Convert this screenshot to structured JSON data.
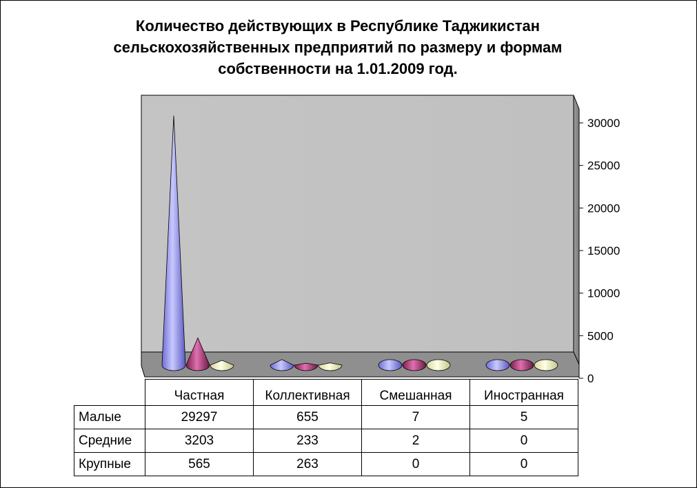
{
  "chart_data": {
    "type": "bar",
    "title_lines": [
      "Количество действующих в Республике Таджикистан",
      "сельскохозяйственных предприятий по размеру и формам",
      "собственности на 1.01.2009 год."
    ],
    "categories": [
      "Частная",
      "Коллективная",
      "Смешанная",
      "Иностранная"
    ],
    "series": [
      {
        "name": "Малые",
        "values": [
          29297,
          655,
          7,
          5
        ],
        "color": "#9999FF"
      },
      {
        "name": "Средние",
        "values": [
          3203,
          233,
          2,
          0
        ],
        "color": "#993366"
      },
      {
        "name": "Крупные",
        "values": [
          565,
          263,
          0,
          0
        ],
        "color": "#FFFFCC"
      }
    ],
    "ylim": [
      0,
      30000
    ],
    "yticks": [
      0,
      5000,
      10000,
      15000,
      20000,
      25000,
      30000
    ],
    "ytick_labels": [
      "0",
      "5000",
      "10000",
      "15000",
      "20000",
      "25000",
      "30000"
    ],
    "shape": "cone",
    "axis_side": "right",
    "data_table": true
  }
}
